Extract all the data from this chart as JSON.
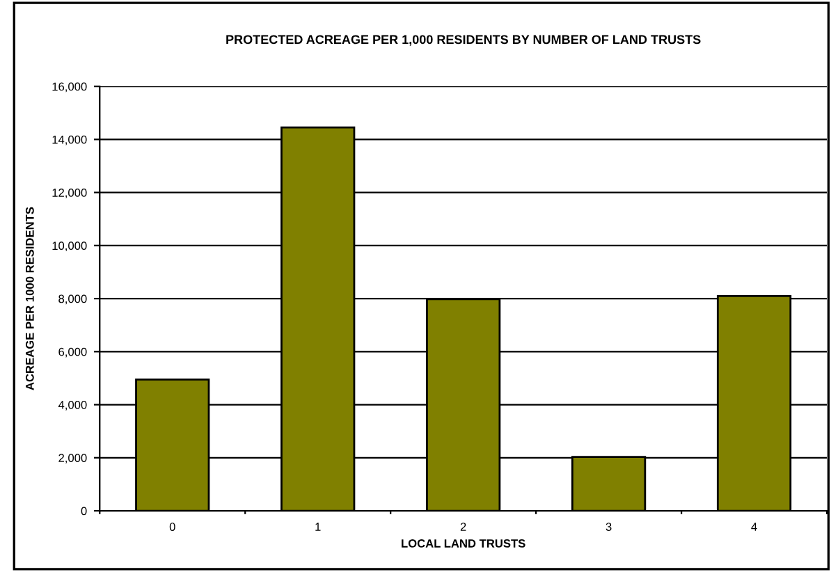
{
  "chart_data": {
    "type": "bar",
    "title": "PROTECTED ACREAGE PER 1,000 RESIDENTS BY NUMBER OF LAND TRUSTS",
    "xlabel": "LOCAL LAND TRUSTS",
    "ylabel": "ACREAGE PER 1000 RESIDENTS",
    "categories": [
      "0",
      "1",
      "2",
      "3",
      "4"
    ],
    "values": [
      4950,
      14450,
      7980,
      2030,
      8100
    ],
    "color": "#808000",
    "ylim": [
      0,
      16000
    ],
    "yticks": [
      {
        "value": 0,
        "label": "0"
      },
      {
        "value": 2000,
        "label": "2,000"
      },
      {
        "value": 4000,
        "label": "4,000"
      },
      {
        "value": 6000,
        "label": "6,000"
      },
      {
        "value": 8000,
        "label": "8,000"
      },
      {
        "value": 10000,
        "label": "10,000"
      },
      {
        "value": 12000,
        "label": "12,000"
      },
      {
        "value": 14000,
        "label": "14,000"
      },
      {
        "value": 16000,
        "label": "16,000"
      }
    ],
    "grid": "y"
  }
}
